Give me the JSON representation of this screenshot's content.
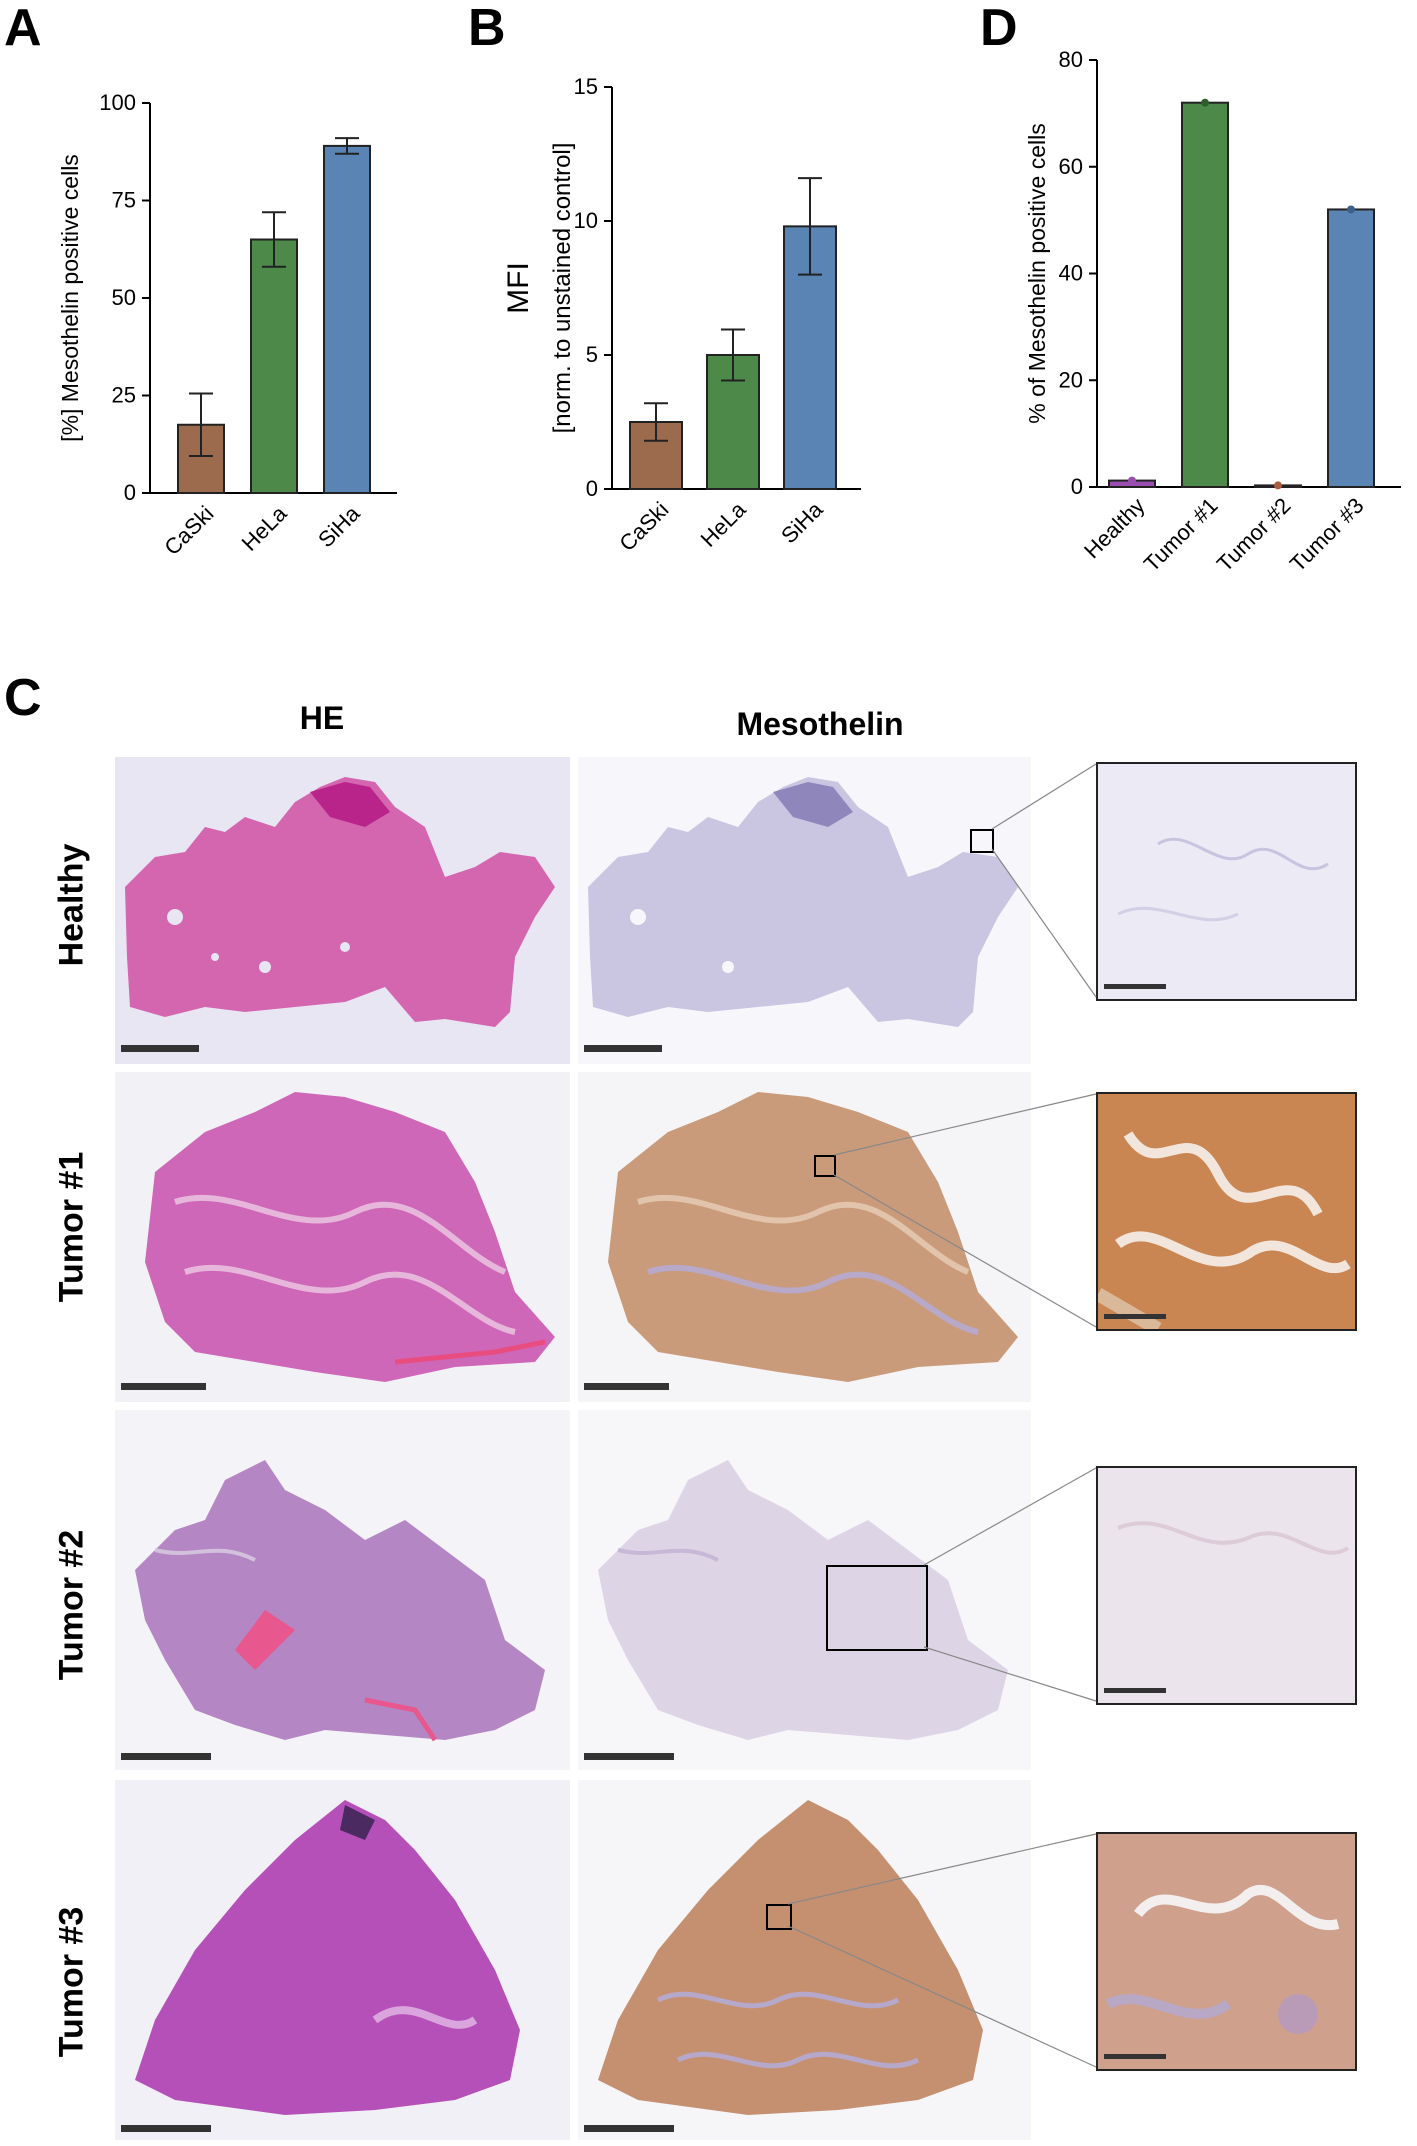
{
  "panels": {
    "A": "A",
    "B": "B",
    "C": "C",
    "D": "D"
  },
  "colors": {
    "caski": "#9c6b4e",
    "hela": "#4d8a4a",
    "siha": "#5a84b4",
    "healthy": "#9a4fb0",
    "tumor2": "#a85d3d",
    "he_tissue": "#c95aa8",
    "meso_stain": "#c88c5c"
  },
  "chart_data": [
    {
      "id": "A",
      "type": "bar",
      "categories": [
        "CaSki",
        "HeLa",
        "SiHa"
      ],
      "values": [
        17.5,
        65,
        89
      ],
      "errors": [
        8,
        7,
        2
      ],
      "ylabel": "[%] Mesothelin positive cells",
      "ylim": [
        0,
        100
      ],
      "yticks": [
        "0",
        "25",
        "50",
        "75",
        "100"
      ],
      "grid": false
    },
    {
      "id": "B",
      "type": "bar",
      "categories": [
        "CaSki",
        "HeLa",
        "SiHa"
      ],
      "values": [
        2.5,
        5.0,
        9.8
      ],
      "errors": [
        0.7,
        0.95,
        1.8
      ],
      "ylabel": "MFI",
      "ylabel2": "[norm. to unstained control]",
      "ylim": [
        0,
        15
      ],
      "yticks": [
        "0",
        "5",
        "10",
        "15"
      ],
      "grid": false
    },
    {
      "id": "D",
      "type": "bar",
      "categories": [
        "Healthy",
        "Tumor #1",
        "Tumor #2",
        "Tumor #3"
      ],
      "values": [
        1.2,
        72,
        0.3,
        52
      ],
      "ylabel": "% of Mesothelin positive cells",
      "ylim": [
        0,
        80
      ],
      "yticks": [
        "0",
        "20",
        "40",
        "60",
        "80"
      ],
      "grid": false
    }
  ],
  "panelC": {
    "columns": [
      "HE",
      "Mesothelin"
    ],
    "rows": [
      "Healthy",
      "Tumor #1",
      "Tumor #2",
      "Tumor #3"
    ]
  }
}
